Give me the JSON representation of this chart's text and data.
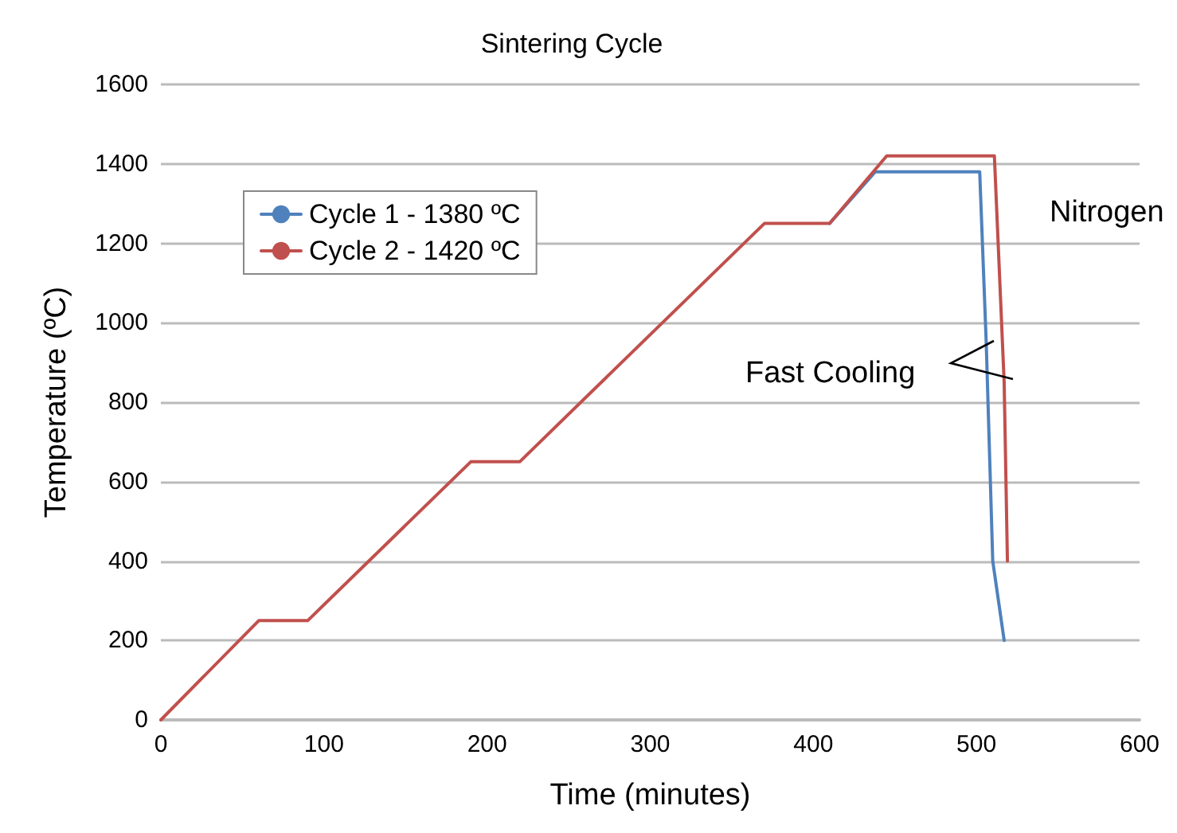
{
  "chart_data": {
    "type": "line",
    "title": "Sintering Cycle",
    "xlabel": "Time (minutes)",
    "ylabel": "Temperature (ºC)",
    "xlim": [
      0,
      600
    ],
    "xticks": [
      0,
      100,
      200,
      300,
      400,
      500,
      600
    ],
    "ylim": [
      0,
      1600
    ],
    "yticks": [
      0,
      200,
      400,
      600,
      800,
      1000,
      1200,
      1400,
      1600
    ],
    "grid": "y",
    "legend": "top left",
    "marker": "none",
    "line_style": "solid",
    "series": [
      {
        "name": "Cycle 1 - 1380 ºC",
        "color": "#4f81bd",
        "x": [
          410,
          438,
          502,
          506,
          510,
          517
        ],
        "values": [
          1250,
          1380,
          1380,
          950,
          400,
          200
        ]
      },
      {
        "name": "Cycle 2 - 1420 ºC",
        "color": "#c0504d",
        "x": [
          0,
          60,
          90,
          190,
          220,
          370,
          410,
          445,
          511,
          517,
          519
        ],
        "values": [
          0,
          250,
          250,
          650,
          650,
          1250,
          1250,
          1420,
          1420,
          850,
          400
        ]
      }
    ],
    "annotations": [
      "Nitrogen",
      "Fast Cooling"
    ]
  }
}
